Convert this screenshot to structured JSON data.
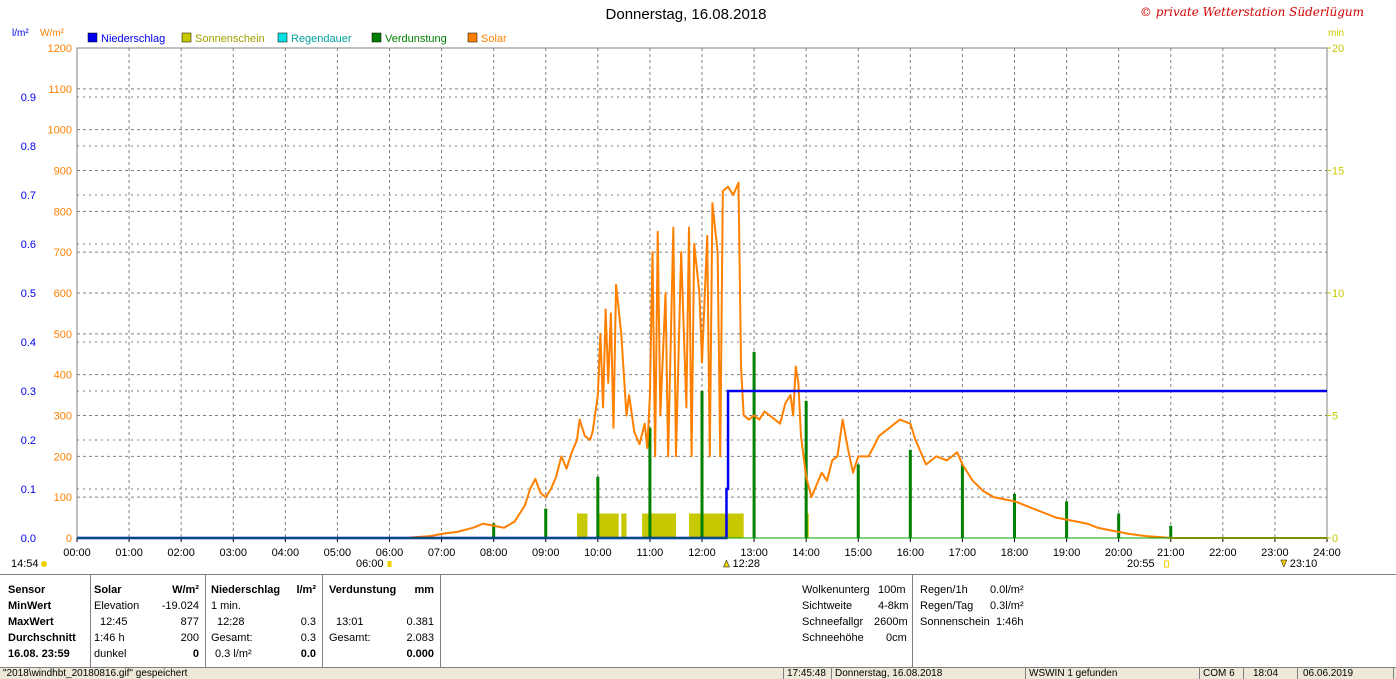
{
  "title": "Donnerstag, 16.08.2018",
  "watermark": "© private Wetterstation Süderlügum",
  "colors": {
    "precip": "#0000ee",
    "sunshine": "#c8c800",
    "rainduration": "#00e0e0",
    "evaporation": "#008000",
    "solar": "#ff8000",
    "grid": "#808080"
  },
  "chart_data": {
    "type": "line",
    "title": "Donnerstag, 16.08.2018",
    "legend": [
      "Niederschlag",
      "Sonnenschein",
      "Regendauer",
      "Verdunstung",
      "Solar"
    ],
    "axes": {
      "left_inner": {
        "unit": "l/m²",
        "ticks": [
          "0.0",
          "0.1",
          "0.2",
          "0.3",
          "0.4",
          "0.5",
          "0.6",
          "0.7",
          "0.8",
          "0.9"
        ],
        "range": [
          0,
          1.0
        ]
      },
      "left_outer": {
        "unit": "W/m²",
        "ticks": [
          "0",
          "100",
          "200",
          "300",
          "400",
          "500",
          "600",
          "700",
          "800",
          "900",
          "1000",
          "1100",
          "1200"
        ],
        "range": [
          0,
          1200
        ]
      },
      "right": {
        "unit": "min",
        "ticks": [
          "0",
          "5",
          "10",
          "15",
          "20"
        ],
        "range": [
          0,
          20
        ]
      },
      "x": {
        "ticks": [
          "00:00",
          "01:00",
          "02:00",
          "03:00",
          "04:00",
          "05:00",
          "06:00",
          "07:00",
          "08:00",
          "09:00",
          "10:00",
          "11:00",
          "12:00",
          "13:00",
          "14:00",
          "15:00",
          "16:00",
          "17:00",
          "18:00",
          "19:00",
          "20:00",
          "21:00",
          "22:00",
          "23:00",
          "24:00"
        ],
        "range_hours": [
          0,
          24
        ]
      }
    },
    "markers": [
      {
        "label": "14:54",
        "hour": 0
      },
      {
        "label": "06:00",
        "hour": 6.0
      },
      {
        "label": "12:28",
        "hour": 12.47
      },
      {
        "label": "20:55",
        "hour": 20.92
      },
      {
        "label": "23:10",
        "hour": 23.17
      }
    ],
    "grid": true,
    "series": [
      {
        "name": "Solar",
        "unit": "W/m²",
        "points": [
          [
            0,
            0
          ],
          [
            6.3,
            0
          ],
          [
            6.8,
            5
          ],
          [
            7.0,
            10
          ],
          [
            7.3,
            15
          ],
          [
            7.6,
            25
          ],
          [
            7.8,
            35
          ],
          [
            8.0,
            30
          ],
          [
            8.2,
            25
          ],
          [
            8.4,
            40
          ],
          [
            8.6,
            80
          ],
          [
            8.7,
            120
          ],
          [
            8.8,
            145
          ],
          [
            8.9,
            110
          ],
          [
            9.0,
            100
          ],
          [
            9.1,
            120
          ],
          [
            9.2,
            150
          ],
          [
            9.3,
            200
          ],
          [
            9.4,
            170
          ],
          [
            9.5,
            210
          ],
          [
            9.6,
            240
          ],
          [
            9.65,
            290
          ],
          [
            9.75,
            250
          ],
          [
            9.85,
            240
          ],
          [
            9.9,
            260
          ],
          [
            10.0,
            350
          ],
          [
            10.05,
            500
          ],
          [
            10.1,
            320
          ],
          [
            10.15,
            560
          ],
          [
            10.2,
            380
          ],
          [
            10.25,
            550
          ],
          [
            10.3,
            270
          ],
          [
            10.35,
            620
          ],
          [
            10.45,
            500
          ],
          [
            10.55,
            300
          ],
          [
            10.6,
            350
          ],
          [
            10.7,
            260
          ],
          [
            10.8,
            230
          ],
          [
            10.9,
            280
          ],
          [
            10.95,
            220
          ],
          [
            11.0,
            350
          ],
          [
            11.05,
            700
          ],
          [
            11.1,
            200
          ],
          [
            11.15,
            750
          ],
          [
            11.2,
            300
          ],
          [
            11.3,
            600
          ],
          [
            11.35,
            200
          ],
          [
            11.45,
            760
          ],
          [
            11.5,
            200
          ],
          [
            11.6,
            700
          ],
          [
            11.7,
            320
          ],
          [
            11.75,
            760
          ],
          [
            11.8,
            200
          ],
          [
            11.85,
            720
          ],
          [
            11.95,
            600
          ],
          [
            12.0,
            430
          ],
          [
            12.1,
            740
          ],
          [
            12.15,
            200
          ],
          [
            12.2,
            820
          ],
          [
            12.3,
            700
          ],
          [
            12.35,
            200
          ],
          [
            12.4,
            850
          ],
          [
            12.5,
            860
          ],
          [
            12.6,
            840
          ],
          [
            12.7,
            870
          ],
          [
            12.75,
            420
          ],
          [
            12.8,
            300
          ],
          [
            12.9,
            290
          ],
          [
            13.0,
            300
          ],
          [
            13.1,
            290
          ],
          [
            13.2,
            310
          ],
          [
            13.3,
            300
          ],
          [
            13.4,
            290
          ],
          [
            13.5,
            280
          ],
          [
            13.6,
            330
          ],
          [
            13.7,
            350
          ],
          [
            13.75,
            300
          ],
          [
            13.8,
            420
          ],
          [
            13.85,
            380
          ],
          [
            13.9,
            250
          ],
          [
            14.0,
            150
          ],
          [
            14.1,
            100
          ],
          [
            14.2,
            130
          ],
          [
            14.3,
            160
          ],
          [
            14.4,
            140
          ],
          [
            14.5,
            190
          ],
          [
            14.6,
            200
          ],
          [
            14.7,
            290
          ],
          [
            14.8,
            220
          ],
          [
            14.9,
            160
          ],
          [
            15.0,
            200
          ],
          [
            15.2,
            200
          ],
          [
            15.4,
            250
          ],
          [
            15.6,
            270
          ],
          [
            15.8,
            290
          ],
          [
            16.0,
            280
          ],
          [
            16.1,
            240
          ],
          [
            16.3,
            180
          ],
          [
            16.5,
            200
          ],
          [
            16.7,
            190
          ],
          [
            16.9,
            210
          ],
          [
            17.0,
            180
          ],
          [
            17.2,
            140
          ],
          [
            17.4,
            115
          ],
          [
            17.6,
            100
          ],
          [
            17.8,
            95
          ],
          [
            18.0,
            90
          ],
          [
            18.2,
            80
          ],
          [
            18.4,
            70
          ],
          [
            18.6,
            60
          ],
          [
            18.8,
            50
          ],
          [
            19.0,
            45
          ],
          [
            19.2,
            40
          ],
          [
            19.4,
            35
          ],
          [
            19.6,
            25
          ],
          [
            19.8,
            20
          ],
          [
            20.0,
            15
          ],
          [
            20.2,
            10
          ],
          [
            20.5,
            5
          ],
          [
            20.8,
            2
          ],
          [
            21.0,
            0
          ],
          [
            24,
            0
          ]
        ]
      },
      {
        "name": "Niederschlag",
        "unit": "l/m²",
        "points": [
          [
            0,
            0
          ],
          [
            12.47,
            0
          ],
          [
            12.47,
            0.1
          ],
          [
            12.5,
            0.1
          ],
          [
            12.5,
            0.3
          ],
          [
            24,
            0.3
          ]
        ]
      },
      {
        "name": "Verdunstung",
        "unit": "min",
        "bars": [
          [
            8.0,
            0.6
          ],
          [
            9.0,
            1.2
          ],
          [
            10.0,
            2.5
          ],
          [
            11.0,
            4.5
          ],
          [
            12.0,
            6.0
          ],
          [
            13.0,
            7.6
          ],
          [
            14.0,
            5.6
          ],
          [
            15.0,
            3.0
          ],
          [
            16.0,
            3.6
          ],
          [
            17.0,
            3.0
          ],
          [
            18.0,
            1.8
          ],
          [
            19.0,
            1.5
          ],
          [
            20.0,
            1.0
          ],
          [
            21.0,
            0.5
          ]
        ]
      },
      {
        "name": "Sonnenschein",
        "unit": "min",
        "spans": [
          [
            9.6,
            9.8,
            1.0
          ],
          [
            10.0,
            10.4,
            1.0
          ],
          [
            10.45,
            10.55,
            1.0
          ],
          [
            10.85,
            11.5,
            1.0
          ],
          [
            11.75,
            12.8,
            1.0
          ],
          [
            14.0,
            14.05,
            1.0
          ]
        ]
      }
    ]
  },
  "panel": {
    "c1": {
      "h": "Sensor",
      "r1": "MinWert",
      "r2": "MaxWert",
      "r3": "Durchschnitt",
      "r4": "16.08. 23:59"
    },
    "c2": {
      "h": "Solar",
      "hu": "W/m²",
      "r1a": "Elevation",
      "r1b": "-19.024",
      "r2a": "12:45",
      "r2b": "877",
      "r3a": "1:46 h",
      "r3b": "200",
      "r4a": "dunkel",
      "r4b": "0"
    },
    "c3": {
      "h": "Niederschlag",
      "hu": "l/m²",
      "r1a": "1 min.",
      "r2a": "12:28",
      "r2b": "0.3",
      "r3a": "Gesamt:",
      "r3b": "0.3",
      "r4a": "0.3 l/m²",
      "r4b": "0.0"
    },
    "c4": {
      "h": "Verdunstung",
      "hu": "mm",
      "r2a": "13:01",
      "r2b": "0.381",
      "r3a": "Gesamt:",
      "r3b": "2.083",
      "r4b": "0.000"
    },
    "c5": {
      "r1a": "Wolkenunterg",
      "r1b": "100m",
      "r2a": "Sichtweite",
      "r2b": "4-8km",
      "r3a": "Schneefallgr",
      "r3b": "2600m",
      "r4a": "Schneehöhe",
      "r4b": "0cm"
    },
    "c6": {
      "r1a": "Regen/1h",
      "r1b": "0.0l/m²",
      "r2a": "Regen/Tag",
      "r2b": "0.3l/m²",
      "r3a": "Sonnenschein",
      "r3b": "1:46h"
    }
  },
  "status": {
    "s1": "\"2018\\windhbt_20180816.gif\" gespeichert",
    "s2": "17:45:48",
    "s3": "Donnerstag, 16.08.2018",
    "s4": "WSWIN 1 gefunden",
    "s5": "COM 6",
    "s6": "18:04",
    "s7": "06.06.2019"
  }
}
